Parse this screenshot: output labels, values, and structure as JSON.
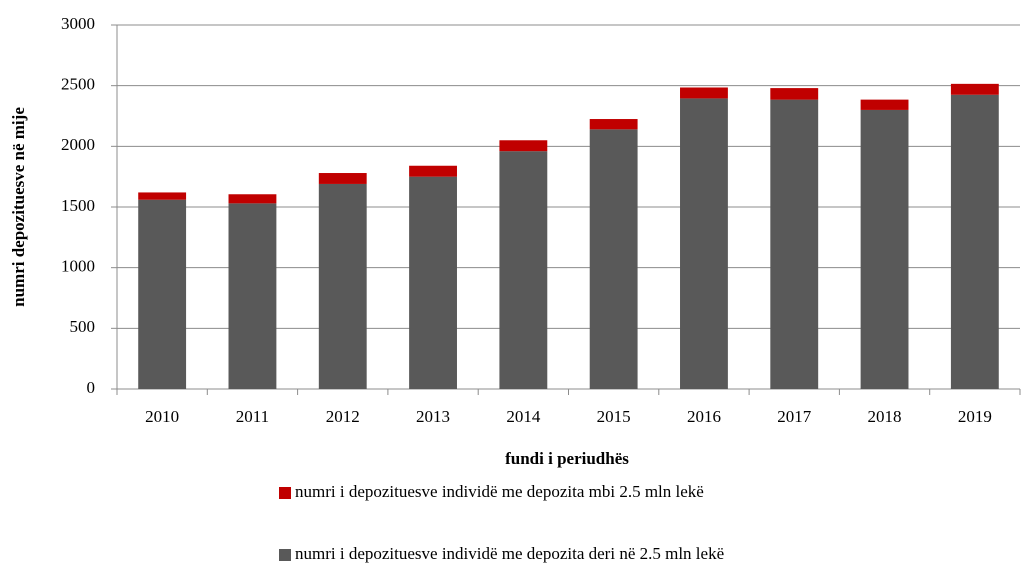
{
  "chart_data": {
    "type": "stacked_bar",
    "xlabel": "fundi i periudhës",
    "ylabel": "numri depozituesve në mije",
    "categories": [
      "2010",
      "2011",
      "2012",
      "2013",
      "2014",
      "2015",
      "2016",
      "2017",
      "2018",
      "2019"
    ],
    "series": [
      {
        "name": "numri i depozituesve individë me depozita deri në 2.5 mln lekë",
        "color": "#595959",
        "values": [
          1560,
          1530,
          1690,
          1750,
          1960,
          2140,
          2395,
          2385,
          2300,
          2425
        ]
      },
      {
        "name": "numri i depozituesve individë  me depozita mbi 2.5 mln lekë",
        "color": "#c00000",
        "values": [
          60,
          75,
          90,
          90,
          90,
          85,
          90,
          95,
          85,
          90
        ]
      }
    ],
    "ylim": [
      0,
      3000
    ],
    "yticks": [
      0,
      500,
      1000,
      1500,
      2000,
      2500,
      3000
    ],
    "grid": true
  }
}
